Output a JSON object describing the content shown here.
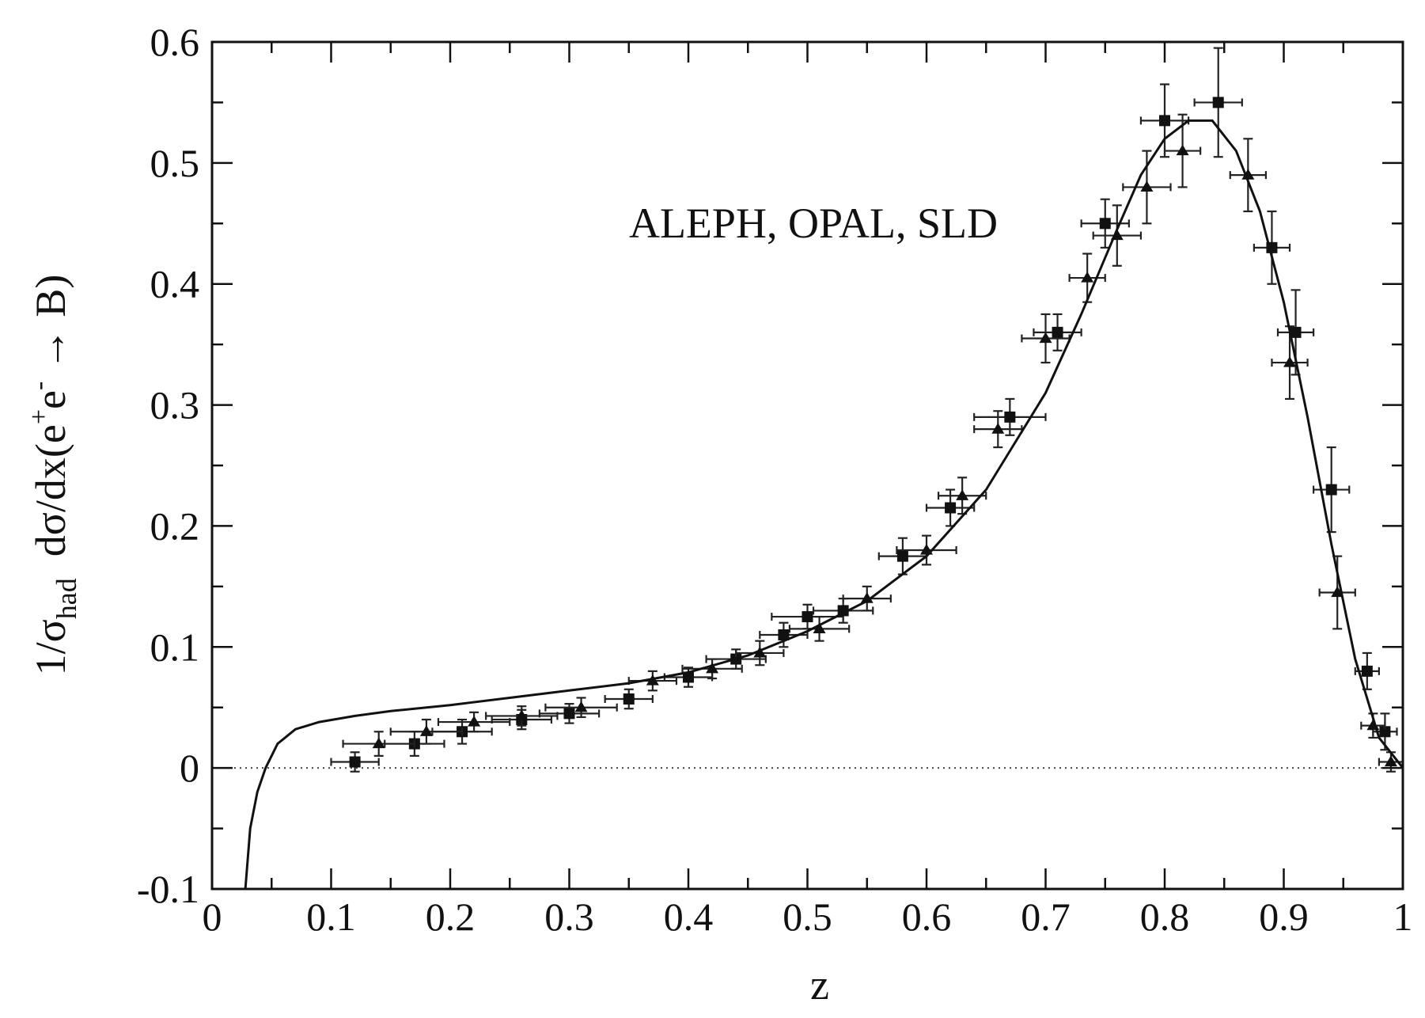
{
  "chart_data": {
    "type": "scatter",
    "title": "",
    "annotation": "ALEPH, OPAL, SLD",
    "xlabel": "z",
    "ylabel": "1/σhad dσ/dx(e+e− → B)",
    "ylabel_parts": {
      "prefix": "1/σ",
      "sub": "had",
      "mid": "  dσ/dx(e",
      "sup1": "+",
      "e2": "e",
      "sup2": "-",
      "suffix": " → B)"
    },
    "xlim": [
      0,
      1
    ],
    "ylim": [
      -0.1,
      0.6
    ],
    "x_ticks": [
      "0",
      "0.1",
      "0.2",
      "0.3",
      "0.4",
      "0.5",
      "0.6",
      "0.7",
      "0.8",
      "0.9",
      "1"
    ],
    "y_ticks": [
      "-0.1",
      "0",
      "0.1",
      "0.2",
      "0.3",
      "0.4",
      "0.5",
      "0.6"
    ],
    "grid": false,
    "reference_line": {
      "y": 0,
      "style": "dotted"
    },
    "series": [
      {
        "kind": "data",
        "marker": "circle",
        "points": [
          {
            "x": 0.12,
            "y": 0.005,
            "ex": 0.02,
            "ey": 0.008
          },
          {
            "x": 0.17,
            "y": 0.02,
            "ex": 0.025,
            "ey": 0.01
          },
          {
            "x": 0.21,
            "y": 0.03,
            "ex": 0.025,
            "ey": 0.01
          },
          {
            "x": 0.26,
            "y": 0.04,
            "ex": 0.025,
            "ey": 0.008
          },
          {
            "x": 0.3,
            "y": 0.045,
            "ex": 0.025,
            "ey": 0.008
          },
          {
            "x": 0.35,
            "y": 0.057,
            "ex": 0.02,
            "ey": 0.008
          },
          {
            "x": 0.4,
            "y": 0.075,
            "ex": 0.02,
            "ey": 0.008
          },
          {
            "x": 0.44,
            "y": 0.09,
            "ex": 0.025,
            "ey": 0.008
          },
          {
            "x": 0.48,
            "y": 0.11,
            "ex": 0.02,
            "ey": 0.01
          },
          {
            "x": 0.5,
            "y": 0.125,
            "ex": 0.03,
            "ey": 0.01
          },
          {
            "x": 0.53,
            "y": 0.13,
            "ex": 0.025,
            "ey": 0.01
          },
          {
            "x": 0.58,
            "y": 0.175,
            "ex": 0.02,
            "ey": 0.015
          },
          {
            "x": 0.62,
            "y": 0.215,
            "ex": 0.02,
            "ey": 0.015
          },
          {
            "x": 0.67,
            "y": 0.29,
            "ex": 0.03,
            "ey": 0.015
          },
          {
            "x": 0.71,
            "y": 0.36,
            "ex": 0.02,
            "ey": 0.015
          },
          {
            "x": 0.75,
            "y": 0.45,
            "ex": 0.02,
            "ey": 0.02
          },
          {
            "x": 0.8,
            "y": 0.535,
            "ex": 0.02,
            "ey": 0.03
          },
          {
            "x": 0.845,
            "y": 0.55,
            "ex": 0.02,
            "ey": 0.045
          },
          {
            "x": 0.89,
            "y": 0.43,
            "ex": 0.015,
            "ey": 0.03
          },
          {
            "x": 0.91,
            "y": 0.36,
            "ex": 0.015,
            "ey": 0.035
          },
          {
            "x": 0.94,
            "y": 0.23,
            "ex": 0.015,
            "ey": 0.035
          },
          {
            "x": 0.97,
            "y": 0.08,
            "ex": 0.01,
            "ey": 0.015
          },
          {
            "x": 0.985,
            "y": 0.03,
            "ex": 0.01,
            "ey": 0.015
          }
        ]
      },
      {
        "kind": "data",
        "marker": "triangle",
        "points": [
          {
            "x": 0.14,
            "y": 0.02,
            "ex": 0.03,
            "ey": 0.01
          },
          {
            "x": 0.18,
            "y": 0.03,
            "ex": 0.03,
            "ey": 0.01
          },
          {
            "x": 0.22,
            "y": 0.038,
            "ex": 0.03,
            "ey": 0.008
          },
          {
            "x": 0.26,
            "y": 0.043,
            "ex": 0.03,
            "ey": 0.008
          },
          {
            "x": 0.31,
            "y": 0.05,
            "ex": 0.03,
            "ey": 0.008
          },
          {
            "x": 0.37,
            "y": 0.072,
            "ex": 0.02,
            "ey": 0.008
          },
          {
            "x": 0.42,
            "y": 0.082,
            "ex": 0.025,
            "ey": 0.008
          },
          {
            "x": 0.46,
            "y": 0.095,
            "ex": 0.02,
            "ey": 0.01
          },
          {
            "x": 0.51,
            "y": 0.115,
            "ex": 0.025,
            "ey": 0.01
          },
          {
            "x": 0.55,
            "y": 0.14,
            "ex": 0.02,
            "ey": 0.01
          },
          {
            "x": 0.6,
            "y": 0.18,
            "ex": 0.025,
            "ey": 0.012
          },
          {
            "x": 0.63,
            "y": 0.225,
            "ex": 0.02,
            "ey": 0.015
          },
          {
            "x": 0.66,
            "y": 0.28,
            "ex": 0.02,
            "ey": 0.015
          },
          {
            "x": 0.7,
            "y": 0.355,
            "ex": 0.02,
            "ey": 0.02
          },
          {
            "x": 0.735,
            "y": 0.405,
            "ex": 0.015,
            "ey": 0.02
          },
          {
            "x": 0.76,
            "y": 0.44,
            "ex": 0.02,
            "ey": 0.025
          },
          {
            "x": 0.785,
            "y": 0.48,
            "ex": 0.02,
            "ey": 0.03
          },
          {
            "x": 0.815,
            "y": 0.51,
            "ex": 0.015,
            "ey": 0.03
          },
          {
            "x": 0.87,
            "y": 0.49,
            "ex": 0.015,
            "ey": 0.03
          },
          {
            "x": 0.905,
            "y": 0.335,
            "ex": 0.015,
            "ey": 0.03
          },
          {
            "x": 0.945,
            "y": 0.145,
            "ex": 0.015,
            "ey": 0.03
          },
          {
            "x": 0.975,
            "y": 0.035,
            "ex": 0.01,
            "ey": 0.01
          },
          {
            "x": 0.99,
            "y": 0.005,
            "ex": 0.01,
            "ey": 0.008
          }
        ]
      },
      {
        "kind": "fit",
        "marker": "line",
        "x": [
          0.028,
          0.032,
          0.038,
          0.045,
          0.055,
          0.07,
          0.09,
          0.12,
          0.15,
          0.2,
          0.25,
          0.3,
          0.35,
          0.4,
          0.45,
          0.5,
          0.55,
          0.6,
          0.65,
          0.7,
          0.73,
          0.76,
          0.78,
          0.8,
          0.82,
          0.84,
          0.86,
          0.88,
          0.9,
          0.92,
          0.94,
          0.96,
          0.98,
          1.0
        ],
        "y": [
          -0.1,
          -0.05,
          -0.02,
          0.0,
          0.02,
          0.032,
          0.038,
          0.043,
          0.047,
          0.052,
          0.058,
          0.064,
          0.07,
          0.079,
          0.093,
          0.113,
          0.138,
          0.175,
          0.23,
          0.31,
          0.375,
          0.445,
          0.49,
          0.52,
          0.535,
          0.535,
          0.51,
          0.46,
          0.385,
          0.29,
          0.185,
          0.09,
          0.025,
          0.0
        ]
      }
    ]
  }
}
